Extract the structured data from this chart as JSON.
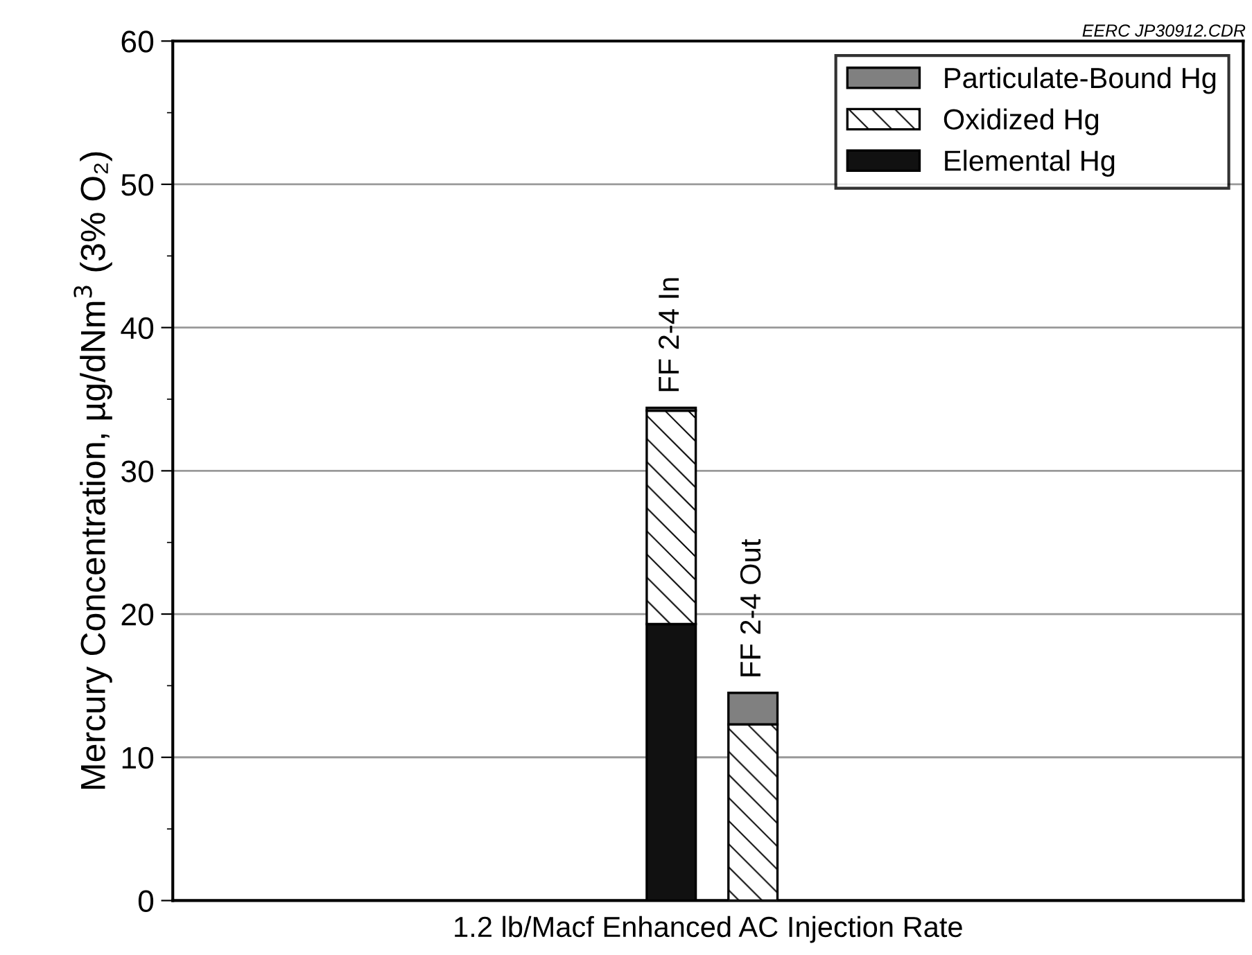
{
  "chart_data": {
    "type": "bar",
    "stacked": true,
    "categories": [
      "FF 2-4 In",
      "FF 2-4 Out"
    ],
    "xlabel": "1.2 lb/Macf Enhanced AC Injection Rate",
    "ylabel": "Mercury Concentration, µg/dNm$^{3}$ (3% O₂)",
    "series": [
      {
        "name": "Elemental Hg",
        "color": "#111111",
        "values": [
          19.3,
          null
        ]
      },
      {
        "name": "Oxidized Hg",
        "color": "#ffffff",
        "values": [
          14.9,
          12.3
        ]
      },
      {
        "name": "Particulate-Bound Hg",
        "color": "#808080",
        "values": [
          0.2,
          2.2
        ]
      }
    ],
    "ylim": [
      0,
      60
    ],
    "yticks": [
      0,
      10,
      20,
      30,
      40,
      50,
      60
    ],
    "grid": "y",
    "legend": "top right",
    "annotations": [
      "EERC JP30912.CDR"
    ]
  }
}
